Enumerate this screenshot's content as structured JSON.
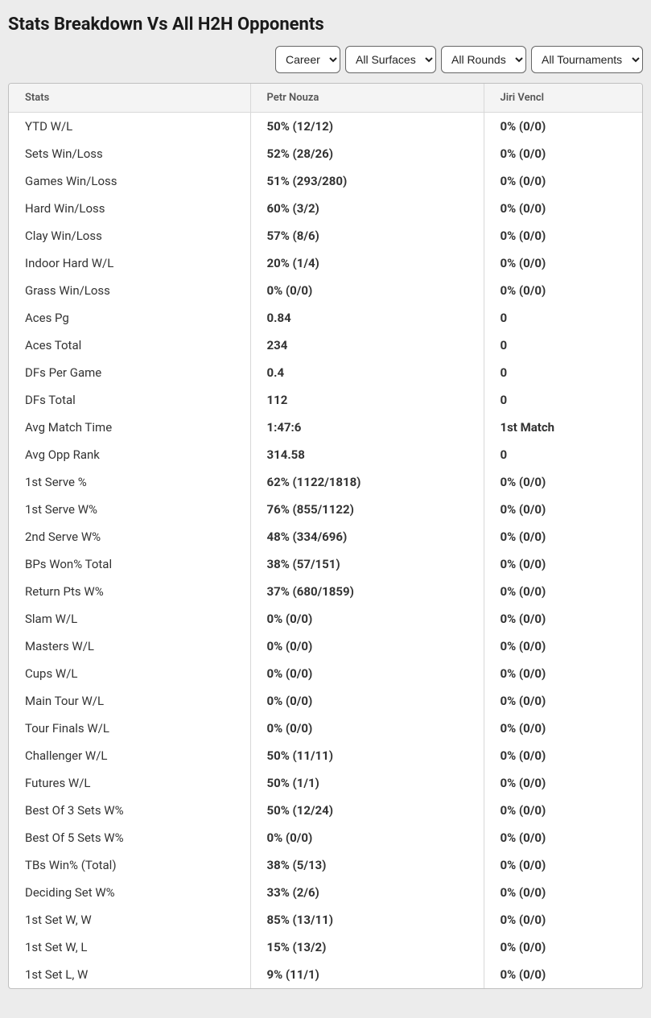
{
  "title": "Stats Breakdown Vs All H2H Opponents",
  "filters": {
    "period": {
      "selected": "Career"
    },
    "surface": {
      "selected": "All Surfaces"
    },
    "round": {
      "selected": "All Rounds"
    },
    "tournament": {
      "selected": "All Tournaments"
    }
  },
  "columns": {
    "stats": "Stats",
    "player1": "Petr Nouza",
    "player2": "Jiri Vencl"
  },
  "rows": [
    {
      "stat": "YTD W/L",
      "p1": "50% (12/12)",
      "p2": "0% (0/0)"
    },
    {
      "stat": "Sets Win/Loss",
      "p1": "52% (28/26)",
      "p2": "0% (0/0)"
    },
    {
      "stat": "Games Win/Loss",
      "p1": "51% (293/280)",
      "p2": "0% (0/0)"
    },
    {
      "stat": "Hard Win/Loss",
      "p1": "60% (3/2)",
      "p2": "0% (0/0)"
    },
    {
      "stat": "Clay Win/Loss",
      "p1": "57% (8/6)",
      "p2": "0% (0/0)"
    },
    {
      "stat": "Indoor Hard W/L",
      "p1": "20% (1/4)",
      "p2": "0% (0/0)"
    },
    {
      "stat": "Grass Win/Loss",
      "p1": "0% (0/0)",
      "p2": "0% (0/0)"
    },
    {
      "stat": "Aces Pg",
      "p1": "0.84",
      "p2": "0"
    },
    {
      "stat": "Aces Total",
      "p1": "234",
      "p2": "0"
    },
    {
      "stat": "DFs Per Game",
      "p1": "0.4",
      "p2": "0"
    },
    {
      "stat": "DFs Total",
      "p1": "112",
      "p2": "0"
    },
    {
      "stat": "Avg Match Time",
      "p1": "1:47:6",
      "p2": "1st Match"
    },
    {
      "stat": "Avg Opp Rank",
      "p1": "314.58",
      "p2": "0"
    },
    {
      "stat": "1st Serve %",
      "p1": "62% (1122/1818)",
      "p2": "0% (0/0)"
    },
    {
      "stat": "1st Serve W%",
      "p1": "76% (855/1122)",
      "p2": "0% (0/0)"
    },
    {
      "stat": "2nd Serve W%",
      "p1": "48% (334/696)",
      "p2": "0% (0/0)"
    },
    {
      "stat": "BPs Won% Total",
      "p1": "38% (57/151)",
      "p2": "0% (0/0)"
    },
    {
      "stat": "Return Pts W%",
      "p1": "37% (680/1859)",
      "p2": "0% (0/0)"
    },
    {
      "stat": "Slam W/L",
      "p1": "0% (0/0)",
      "p2": "0% (0/0)"
    },
    {
      "stat": "Masters W/L",
      "p1": "0% (0/0)",
      "p2": "0% (0/0)"
    },
    {
      "stat": "Cups W/L",
      "p1": "0% (0/0)",
      "p2": "0% (0/0)"
    },
    {
      "stat": "Main Tour W/L",
      "p1": "0% (0/0)",
      "p2": "0% (0/0)"
    },
    {
      "stat": "Tour Finals W/L",
      "p1": "0% (0/0)",
      "p2": "0% (0/0)"
    },
    {
      "stat": "Challenger W/L",
      "p1": "50% (11/11)",
      "p2": "0% (0/0)"
    },
    {
      "stat": "Futures W/L",
      "p1": "50% (1/1)",
      "p2": "0% (0/0)"
    },
    {
      "stat": "Best Of 3 Sets W%",
      "p1": "50% (12/24)",
      "p2": "0% (0/0)"
    },
    {
      "stat": "Best Of 5 Sets W%",
      "p1": "0% (0/0)",
      "p2": "0% (0/0)"
    },
    {
      "stat": "TBs Win% (Total)",
      "p1": "38% (5/13)",
      "p2": "0% (0/0)"
    },
    {
      "stat": "Deciding Set W%",
      "p1": "33% (2/6)",
      "p2": "0% (0/0)"
    },
    {
      "stat": "1st Set W, W",
      "p1": "85% (13/11)",
      "p2": "0% (0/0)"
    },
    {
      "stat": "1st Set W, L",
      "p1": "15% (13/2)",
      "p2": "0% (0/0)"
    },
    {
      "stat": "1st Set L, W",
      "p1": "9% (11/1)",
      "p2": "0% (0/0)"
    }
  ]
}
